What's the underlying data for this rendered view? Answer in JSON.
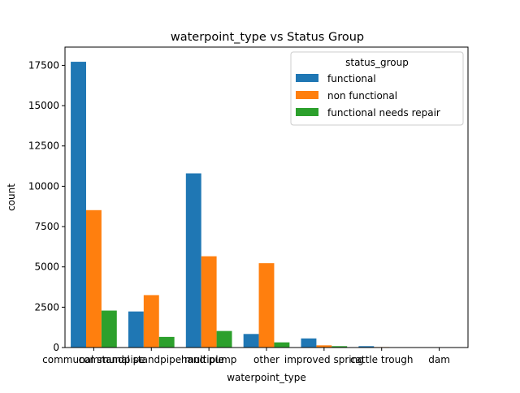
{
  "chart_data": {
    "type": "bar",
    "title": "waterpoint_type vs Status Group",
    "xlabel": "waterpoint_type",
    "ylabel": "count",
    "categories": [
      "communal standpipe",
      "communal standpipe multiple",
      "hand pump",
      "other",
      "improved spring",
      "cattle trough",
      "dam"
    ],
    "series": [
      {
        "name": "functional",
        "color": "#1f77b4",
        "values": [
          17720,
          2235,
          10800,
          840,
          565,
          85,
          5
        ]
      },
      {
        "name": "non functional",
        "color": "#ff7f0e",
        "values": [
          8520,
          3250,
          5660,
          5230,
          135,
          30,
          2
        ]
      },
      {
        "name": "functional needs repair",
        "color": "#2ca02c",
        "values": [
          2290,
          660,
          1025,
          320,
          85,
          0,
          0
        ]
      }
    ],
    "ylim": [
      0,
      18630
    ],
    "yticks": [
      0,
      2500,
      5000,
      7500,
      10000,
      12500,
      15000,
      17500
    ],
    "legend": {
      "title": "status_group",
      "position": "top-right"
    },
    "grid": false
  }
}
